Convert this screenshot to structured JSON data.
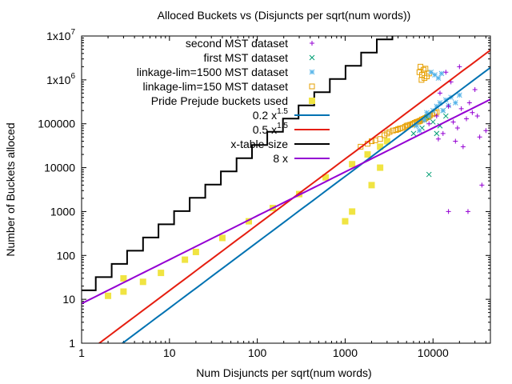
{
  "chart_data": {
    "type": "scatter",
    "title": "Alloced Buckets vs (Disjuncts per sqrt(num words))",
    "xlabel": "Num Disjuncts per sqrt(num words)",
    "ylabel": "Number of Buckets alloced",
    "xscale": "log",
    "yscale": "log",
    "xlim": [
      1,
      45000
    ],
    "ylim": [
      1,
      10000000
    ],
    "x_ticks": [
      {
        "value": 1,
        "label": "1"
      },
      {
        "value": 10,
        "label": "10"
      },
      {
        "value": 100,
        "label": "100"
      },
      {
        "value": 1000,
        "label": "1000"
      },
      {
        "value": 10000,
        "label": "10000"
      }
    ],
    "y_ticks": [
      {
        "value": 1,
        "base": "1",
        "exp": ""
      },
      {
        "value": 10,
        "base": "10",
        "exp": ""
      },
      {
        "value": 100,
        "base": "100",
        "exp": ""
      },
      {
        "value": 1000,
        "base": "1000",
        "exp": ""
      },
      {
        "value": 10000,
        "base": "10000",
        "exp": ""
      },
      {
        "value": 100000,
        "base": "100000",
        "exp": ""
      },
      {
        "value": 1000000,
        "base": "1x10",
        "exp": "6"
      },
      {
        "value": 10000000,
        "base": "1x10",
        "exp": "7"
      }
    ],
    "legend_position": "top-right",
    "series": [
      {
        "name": "second MST dataset",
        "kind": "points",
        "marker": "plus",
        "color": "#9400d3",
        "points": [
          [
            9000,
            100000
          ],
          [
            11000,
            150000
          ],
          [
            13000,
            60000
          ],
          [
            15000,
            250000
          ],
          [
            18000,
            40000
          ],
          [
            22000,
            30000
          ],
          [
            26000,
            300000
          ],
          [
            30000,
            600000
          ],
          [
            36000,
            4000
          ],
          [
            40000,
            70000
          ],
          [
            15000,
            1000
          ],
          [
            25000,
            1000
          ],
          [
            12000,
            500000
          ],
          [
            20000,
            2000000
          ],
          [
            14000,
            1500000
          ],
          [
            16000,
            900000
          ],
          [
            17000,
            110000
          ],
          [
            21000,
            220000
          ],
          [
            24000,
            130000
          ],
          [
            28000,
            180000
          ],
          [
            32000,
            150000
          ],
          [
            34000,
            50000
          ],
          [
            11500,
            45000
          ],
          [
            19000,
            80000
          ]
        ]
      },
      {
        "name": "first MST dataset",
        "kind": "points",
        "marker": "cross",
        "color": "#009e73",
        "points": [
          [
            6000,
            60000
          ],
          [
            7500,
            80000
          ],
          [
            9000,
            7000
          ],
          [
            10000,
            110000
          ],
          [
            12000,
            90000
          ],
          [
            14000,
            150000
          ],
          [
            8500,
            140000
          ],
          [
            11000,
            60000
          ],
          [
            13000,
            200000
          ]
        ]
      },
      {
        "name": "linkage-lim=1500 MST dataset",
        "kind": "points",
        "marker": "star",
        "color": "#56b4e9",
        "points": [
          [
            6500,
            90000
          ],
          [
            7000,
            70000
          ],
          [
            8000,
            120000
          ],
          [
            9000,
            150000
          ],
          [
            10000,
            200000
          ],
          [
            11000,
            250000
          ],
          [
            12000,
            300000
          ],
          [
            13000,
            200000
          ],
          [
            14000,
            350000
          ],
          [
            16000,
            400000
          ],
          [
            18000,
            300000
          ],
          [
            20000,
            450000
          ],
          [
            9500,
            1500000
          ],
          [
            10500,
            1300000
          ],
          [
            11500,
            1100000
          ],
          [
            12500,
            1400000
          ],
          [
            8500,
            180000
          ],
          [
            15000,
            260000
          ]
        ]
      },
      {
        "name": "linkage-lim=150 MST dataset",
        "kind": "points",
        "marker": "square-open",
        "color": "#e69f00",
        "points": [
          [
            1500,
            30000
          ],
          [
            2000,
            40000
          ],
          [
            2500,
            45000
          ],
          [
            3000,
            60000
          ],
          [
            3500,
            70000
          ],
          [
            4000,
            75000
          ],
          [
            4500,
            80000
          ],
          [
            5000,
            90000
          ],
          [
            5500,
            95000
          ],
          [
            6000,
            100000
          ],
          [
            6500,
            110000
          ],
          [
            7000,
            115000
          ],
          [
            7500,
            125000
          ],
          [
            8000,
            130000
          ],
          [
            8500,
            140000
          ],
          [
            9000,
            150000
          ],
          [
            1800,
            35000
          ],
          [
            2200,
            42000
          ],
          [
            2800,
            55000
          ],
          [
            3200,
            65000
          ],
          [
            3800,
            72000
          ],
          [
            4200,
            78000
          ],
          [
            4800,
            85000
          ],
          [
            5200,
            92000
          ],
          [
            5800,
            98000
          ],
          [
            6200,
            105000
          ],
          [
            6800,
            112000
          ],
          [
            7200,
            118000
          ],
          [
            7800,
            128000
          ],
          [
            8200,
            135000
          ],
          [
            8800,
            145000
          ],
          [
            9200,
            155000
          ],
          [
            9800,
            165000
          ],
          [
            10500,
            175000
          ],
          [
            11000,
            185000
          ],
          [
            7000,
            1500000
          ],
          [
            7500,
            1300000
          ],
          [
            8000,
            1100000
          ],
          [
            7200,
            2000000
          ],
          [
            7800,
            1700000
          ],
          [
            8500,
            1200000
          ],
          [
            9000,
            1400000
          ],
          [
            7400,
            1000000
          ],
          [
            8200,
            1800000
          ]
        ]
      },
      {
        "name": "Pride Prejude buckets used",
        "kind": "points",
        "marker": "square-filled",
        "color": "#f0e442",
        "points": [
          [
            2,
            12
          ],
          [
            3,
            15
          ],
          [
            3,
            30
          ],
          [
            5,
            25
          ],
          [
            8,
            40
          ],
          [
            15,
            80
          ],
          [
            20,
            120
          ],
          [
            40,
            250
          ],
          [
            80,
            600
          ],
          [
            150,
            1200
          ],
          [
            300,
            2500
          ],
          [
            600,
            6000
          ],
          [
            1200,
            12000
          ],
          [
            1800,
            20000
          ],
          [
            2500,
            30000
          ],
          [
            3000,
            40000
          ],
          [
            1000,
            600
          ],
          [
            2000,
            4000
          ],
          [
            2500,
            10000
          ],
          [
            1200,
            1000
          ]
        ]
      },
      {
        "name": "0.2 x",
        "name_sup": "1.5",
        "kind": "line",
        "color": "#0072b2",
        "coef": 0.2,
        "power": 1.5
      },
      {
        "name": "0.5 x",
        "name_sup": "1.5",
        "kind": "line",
        "color": "#e51e10",
        "coef": 0.5,
        "power": 1.5
      },
      {
        "name": "x-table-size",
        "kind": "step",
        "color": "#000000",
        "steps": [
          [
            1,
            16
          ],
          [
            1.45,
            16
          ],
          [
            1.45,
            32
          ],
          [
            2.2,
            32
          ],
          [
            2.2,
            64
          ],
          [
            3.3,
            64
          ],
          [
            3.3,
            128
          ],
          [
            5,
            128
          ],
          [
            5,
            256
          ],
          [
            7.5,
            256
          ],
          [
            7.5,
            512
          ],
          [
            11.3,
            512
          ],
          [
            11.3,
            1024
          ],
          [
            17,
            1024
          ],
          [
            17,
            2048
          ],
          [
            25.6,
            2048
          ],
          [
            25.6,
            4096
          ],
          [
            38.5,
            4096
          ],
          [
            38.5,
            8192
          ],
          [
            58,
            8192
          ],
          [
            58,
            16384
          ],
          [
            87,
            16384
          ],
          [
            87,
            32768
          ],
          [
            130,
            32768
          ],
          [
            130,
            65536
          ],
          [
            196,
            65536
          ],
          [
            196,
            131072
          ],
          [
            295,
            131072
          ],
          [
            295,
            262144
          ],
          [
            445,
            262144
          ],
          [
            445,
            524288
          ],
          [
            670,
            524288
          ],
          [
            670,
            1048576
          ],
          [
            1010,
            1048576
          ],
          [
            1010,
            2097152
          ],
          [
            1520,
            2097152
          ],
          [
            1520,
            4194304
          ],
          [
            2290,
            4194304
          ],
          [
            2290,
            8388608
          ],
          [
            3450,
            8388608
          ],
          [
            3450,
            16777216
          ],
          [
            5200,
            16777216
          ],
          [
            5200,
            33554432
          ],
          [
            7830,
            33554432
          ],
          [
            7830,
            67108864
          ],
          [
            11800,
            67108864
          ],
          [
            11800,
            134217728
          ],
          [
            17800,
            134217728
          ],
          [
            17800,
            268435456
          ],
          [
            26800,
            268435456
          ],
          [
            26800,
            536870912
          ],
          [
            40300,
            536870912
          ],
          [
            40300,
            1073741824
          ],
          [
            45000,
            1073741824
          ]
        ]
      },
      {
        "name": "8 x",
        "kind": "line",
        "color": "#9400d3",
        "coef": 8,
        "power": 1
      }
    ]
  }
}
